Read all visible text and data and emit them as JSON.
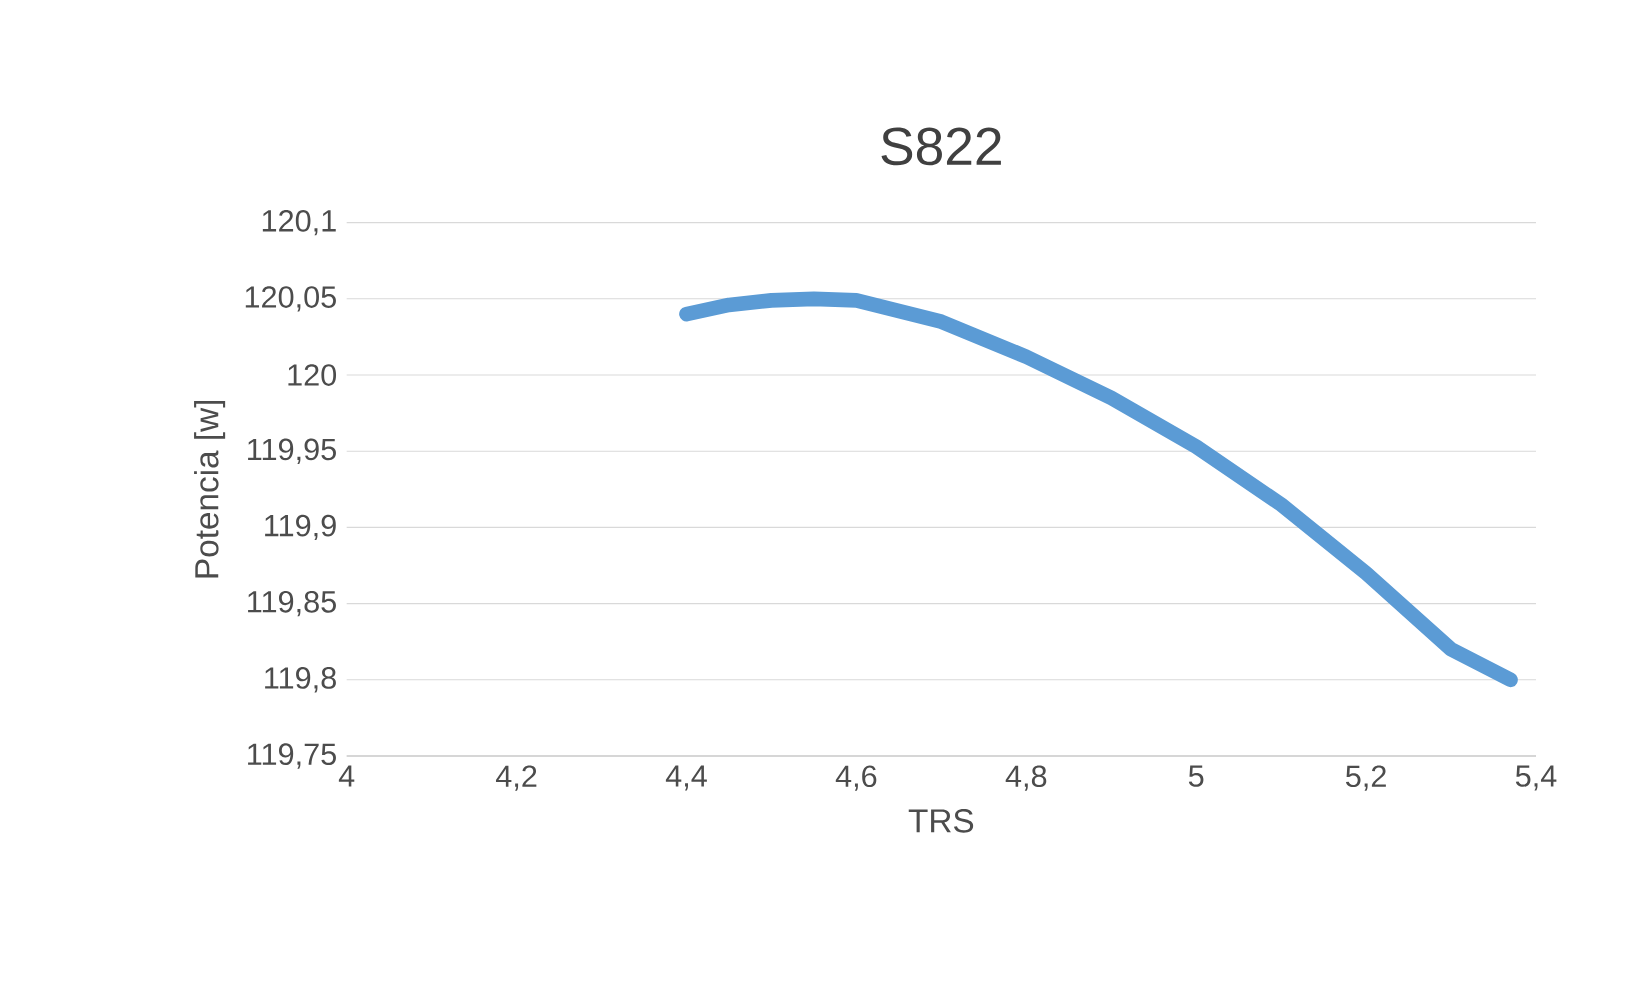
{
  "chart_data": {
    "type": "line",
    "title": "S822",
    "xlabel": "TRS",
    "ylabel": "Potencia [w]",
    "x": [
      4.4,
      4.45,
      4.5,
      4.55,
      4.6,
      4.7,
      4.8,
      4.9,
      5.0,
      5.1,
      5.2,
      5.3,
      5.37
    ],
    "series": [
      {
        "color": "#5b9bd5",
        "values": [
          120.04,
          120.046,
          120.049,
          120.05,
          120.049,
          120.035,
          120.012,
          119.985,
          119.953,
          119.915,
          119.87,
          119.82,
          119.8
        ]
      }
    ],
    "xlim": [
      4,
      5.4
    ],
    "xticks": [
      4,
      {
        "value": 4.2,
        "label": "4,2"
      },
      {
        "value": 4.4,
        "label": "4,4"
      },
      {
        "value": 4.6,
        "label": "4,6"
      },
      {
        "value": 4.8,
        "label": "4,8"
      },
      5,
      {
        "value": 5.2,
        "label": "5,2"
      },
      {
        "value": 5.4,
        "label": "5,4"
      }
    ],
    "ylim": [
      119.75,
      120.1
    ],
    "yticks": [
      {
        "value": 119.75,
        "label": "119,75"
      },
      {
        "value": 119.8,
        "label": "119,8"
      },
      {
        "value": 119.85,
        "label": "119,85"
      },
      {
        "value": 119.9,
        "label": "119,9"
      },
      {
        "value": 119.95,
        "label": "119,95"
      },
      120,
      {
        "value": 120.05,
        "label": "120,05"
      },
      {
        "value": 120.1,
        "label": "120,1"
      }
    ],
    "grid": "y",
    "marker": "none",
    "line_style": "solid"
  }
}
